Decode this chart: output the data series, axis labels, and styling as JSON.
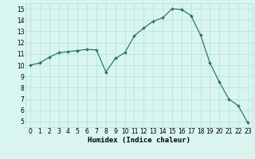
{
  "x": [
    0,
    1,
    2,
    3,
    4,
    5,
    6,
    7,
    8,
    9,
    10,
    11,
    12,
    13,
    14,
    15,
    16,
    17,
    18,
    19,
    20,
    21,
    22,
    23
  ],
  "y": [
    10.0,
    10.2,
    10.7,
    11.1,
    11.2,
    11.3,
    11.4,
    11.35,
    9.4,
    10.6,
    11.1,
    12.6,
    13.3,
    13.9,
    14.2,
    15.0,
    14.95,
    14.4,
    12.7,
    10.2,
    8.5,
    7.0,
    6.4,
    4.9
  ],
  "xlabel": "Humidex (Indice chaleur)",
  "xlim": [
    -0.5,
    23.5
  ],
  "ylim": [
    4.5,
    15.5
  ],
  "yticks": [
    5,
    6,
    7,
    8,
    9,
    10,
    11,
    12,
    13,
    14,
    15
  ],
  "xticks": [
    0,
    1,
    2,
    3,
    4,
    5,
    6,
    7,
    8,
    9,
    10,
    11,
    12,
    13,
    14,
    15,
    16,
    17,
    18,
    19,
    20,
    21,
    22,
    23
  ],
  "line_color": "#1a6b5a",
  "marker_color": "#1a6b5a",
  "bg_color": "#d8f5f0",
  "grid_color": "#b8ddd8",
  "label_fontsize": 6.5,
  "tick_fontsize": 5.5
}
